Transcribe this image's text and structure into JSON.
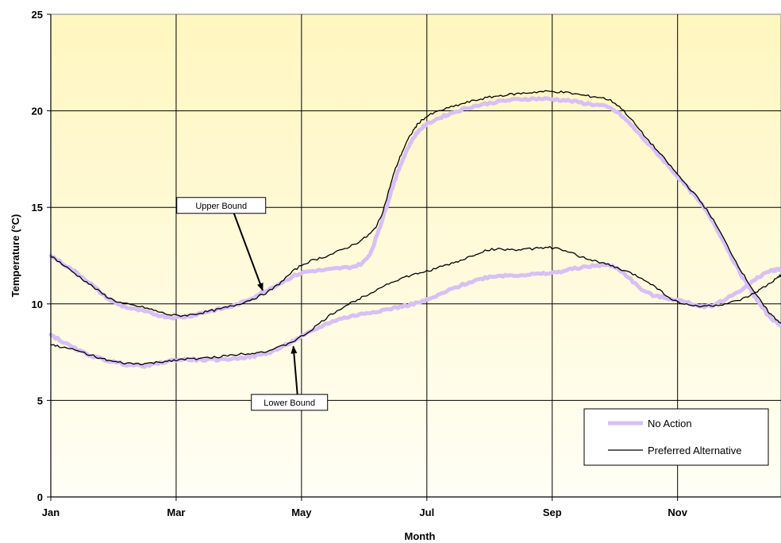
{
  "chart_data": {
    "type": "line",
    "xlabel": "Month",
    "ylabel": "Temperature (°C)",
    "x_ticks": [
      "Jan",
      "Mar",
      "May",
      "Jul",
      "Sep",
      "Nov"
    ],
    "x_tick_months": [
      0,
      2,
      4,
      6,
      8,
      10
    ],
    "xlim": [
      0,
      11.65
    ],
    "ylim": [
      0,
      25
    ],
    "y_ticks": [
      0,
      5,
      10,
      15,
      20,
      25
    ],
    "grid": true,
    "legend_position": "bottom-right",
    "background_colors": [
      "#fff6bf",
      "#fffef5"
    ],
    "series": [
      {
        "name": "No Action",
        "color": "#d8c0f5",
        "bands": [
          {
            "label": "Upper Bound",
            "points": [
              [
                0,
                12.5
              ],
              [
                0.5,
                11.4
              ],
              [
                1,
                10.1
              ],
              [
                1.5,
                9.6
              ],
              [
                2,
                9.3
              ],
              [
                2.5,
                9.6
              ],
              [
                3,
                10.0
              ],
              [
                3.5,
                10.8
              ],
              [
                4,
                11.6
              ],
              [
                4.5,
                11.8
              ],
              [
                5,
                12.2
              ],
              [
                5.25,
                14.0
              ],
              [
                5.5,
                16.5
              ],
              [
                5.75,
                18.4
              ],
              [
                6,
                19.3
              ],
              [
                6.5,
                20.0
              ],
              [
                7,
                20.4
              ],
              [
                7.5,
                20.6
              ],
              [
                8,
                20.6
              ],
              [
                8.5,
                20.4
              ],
              [
                9,
                20.0
              ],
              [
                9.5,
                18.4
              ],
              [
                10,
                16.6
              ],
              [
                10.5,
                14.6
              ],
              [
                11,
                11.6
              ],
              [
                11.4,
                9.6
              ],
              [
                11.65,
                8.9
              ]
            ]
          },
          {
            "label": "Lower Bound",
            "points": [
              [
                0,
                8.4
              ],
              [
                0.5,
                7.5
              ],
              [
                1,
                7.0
              ],
              [
                1.5,
                6.8
              ],
              [
                2,
                7.1
              ],
              [
                2.5,
                7.1
              ],
              [
                3,
                7.2
              ],
              [
                3.5,
                7.5
              ],
              [
                4,
                8.3
              ],
              [
                4.5,
                9.1
              ],
              [
                5,
                9.5
              ],
              [
                5.5,
                9.8
              ],
              [
                6,
                10.2
              ],
              [
                6.5,
                10.9
              ],
              [
                7,
                11.4
              ],
              [
                7.5,
                11.5
              ],
              [
                8,
                11.6
              ],
              [
                8.5,
                11.9
              ],
              [
                9,
                11.9
              ],
              [
                9.5,
                10.6
              ],
              [
                10,
                10.2
              ],
              [
                10.5,
                9.9
              ],
              [
                11,
                10.7
              ],
              [
                11.4,
                11.6
              ],
              [
                11.65,
                11.8
              ]
            ]
          }
        ]
      },
      {
        "name": "Preferred Alternative",
        "color": "#000000",
        "bands": [
          {
            "label": "Upper Bound",
            "points": [
              [
                0,
                12.5
              ],
              [
                0.5,
                11.3
              ],
              [
                1,
                10.2
              ],
              [
                1.5,
                9.8
              ],
              [
                2,
                9.4
              ],
              [
                2.5,
                9.6
              ],
              [
                3,
                10.0
              ],
              [
                3.5,
                10.7
              ],
              [
                4,
                12.0
              ],
              [
                4.5,
                12.6
              ],
              [
                5,
                13.4
              ],
              [
                5.25,
                14.4
              ],
              [
                5.5,
                17.0
              ],
              [
                5.75,
                18.8
              ],
              [
                6,
                19.7
              ],
              [
                6.5,
                20.3
              ],
              [
                7,
                20.7
              ],
              [
                7.5,
                20.9
              ],
              [
                8,
                21.0
              ],
              [
                8.5,
                20.8
              ],
              [
                9,
                20.4
              ],
              [
                9.5,
                18.6
              ],
              [
                10,
                16.7
              ],
              [
                10.5,
                14.7
              ],
              [
                11,
                11.8
              ],
              [
                11.4,
                9.8
              ],
              [
                11.65,
                9.0
              ]
            ]
          },
          {
            "label": "Lower Bound",
            "points": [
              [
                0,
                7.9
              ],
              [
                0.5,
                7.5
              ],
              [
                1,
                7.0
              ],
              [
                1.5,
                6.9
              ],
              [
                2,
                7.1
              ],
              [
                2.5,
                7.2
              ],
              [
                3,
                7.4
              ],
              [
                3.5,
                7.6
              ],
              [
                4,
                8.3
              ],
              [
                4.5,
                9.5
              ],
              [
                5,
                10.4
              ],
              [
                5.5,
                11.2
              ],
              [
                6,
                11.7
              ],
              [
                6.5,
                12.2
              ],
              [
                7,
                12.8
              ],
              [
                7.5,
                12.8
              ],
              [
                8,
                12.9
              ],
              [
                8.5,
                12.4
              ],
              [
                9,
                11.9
              ],
              [
                9.5,
                11.2
              ],
              [
                10,
                10.1
              ],
              [
                10.5,
                9.9
              ],
              [
                11,
                10.2
              ],
              [
                11.4,
                10.9
              ],
              [
                11.65,
                11.5
              ]
            ]
          }
        ]
      }
    ],
    "annotations": [
      {
        "text": "Upper Bound",
        "box": [
          2.01,
          15.1
        ],
        "arrow_to": [
          3.38,
          10.7
        ]
      },
      {
        "text": "Lower Bound",
        "box": [
          3.2,
          4.9
        ],
        "arrow_to": [
          3.87,
          7.8
        ]
      }
    ]
  }
}
